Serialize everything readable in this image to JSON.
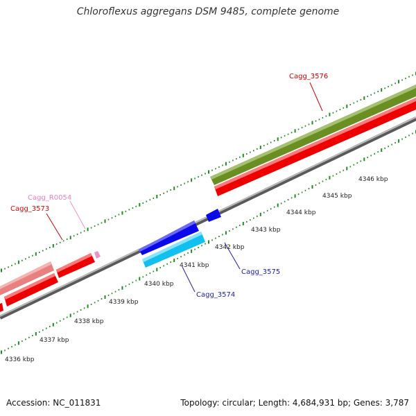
{
  "title": "Chloroflexus aggregans DSM 9485, complete genome",
  "footer": {
    "accession": "Accession: NC_011831",
    "summary": "Topology: circular; Length: 4,684,931 bp; Genes: 3,787"
  },
  "ticks": [
    {
      "label": "4336 kbp"
    },
    {
      "label": "4337 kbp"
    },
    {
      "label": "4338 kbp"
    },
    {
      "label": "4339 kbp"
    },
    {
      "label": "4340 kbp"
    },
    {
      "label": "4341 kbp"
    },
    {
      "label": "4342 kbp"
    },
    {
      "label": "4343 kbp"
    },
    {
      "label": "4344 kbp"
    },
    {
      "label": "4345 kbp"
    },
    {
      "label": "4346 kbp"
    }
  ],
  "genes": [
    {
      "name": "Cagg_3573",
      "color": "#e00000"
    },
    {
      "name": "Cagg_R0054",
      "color": "#ee7ec0"
    },
    {
      "name": "Cagg_3574",
      "color": "#1c1cb0"
    },
    {
      "name": "Cagg_3575",
      "color": "#1c1cb0"
    },
    {
      "name": "Cagg_3576",
      "color": "#d00000"
    }
  ],
  "colors": {
    "cds_strand": "#ee0000",
    "rna_feature": "#e88080",
    "trna_feature": "#f090c8",
    "gene_blue": "#1010e0",
    "gene_cyan": "#10c0f0",
    "gene_olive": "#6b8e23",
    "backbone": "#888888",
    "tick": "#228b22"
  }
}
